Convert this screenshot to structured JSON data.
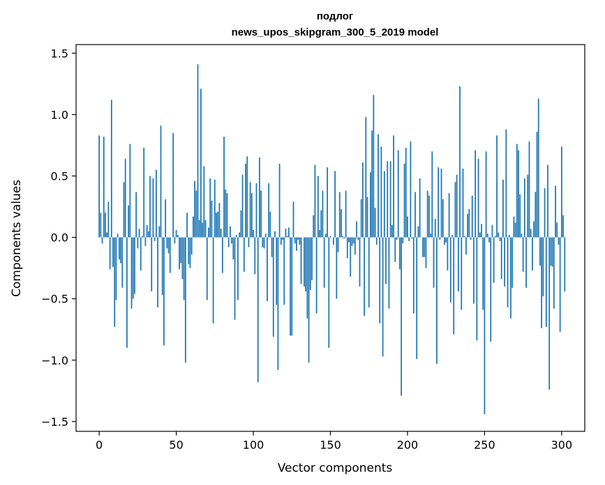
{
  "chart_data": {
    "type": "bar",
    "title": "подлог",
    "subtitle": "news_upos_skipgram_300_5_2019 model",
    "xlabel": "Vector components",
    "ylabel": "Components values",
    "xlim": [
      -15,
      315
    ],
    "ylim": [
      -1.58,
      1.57
    ],
    "xticks": [
      0,
      50,
      100,
      150,
      200,
      250,
      300
    ],
    "yticks": [
      -1.5,
      -1.0,
      -0.5,
      0.0,
      0.5,
      1.0,
      1.5
    ],
    "ytick_labels": [
      "−1.5",
      "−1.0",
      "−0.5",
      "0.0",
      "0.5",
      "1.0",
      "1.5"
    ],
    "bar_color": "#1f77b4",
    "values": [
      0.83,
      0.2,
      -0.05,
      0.82,
      0.2,
      0.04,
      0.29,
      -0.26,
      1.12,
      -0.24,
      -0.73,
      -0.51,
      0.03,
      -0.18,
      -0.21,
      -0.41,
      0.45,
      0.64,
      -0.9,
      0.26,
      0.76,
      -0.58,
      -0.5,
      -0.46,
      0.37,
      -0.09,
      0.07,
      -0.27,
      0.01,
      0.73,
      -0.07,
      0.1,
      0.05,
      0.5,
      -0.44,
      0.48,
      -0.03,
      0.55,
      -0.57,
      0.09,
      0.91,
      -0.47,
      -0.88,
      0.31,
      -0.09,
      -0.13,
      -0.29,
      0.0,
      0.85,
      -0.05,
      0.06,
      0.02,
      -0.26,
      -0.21,
      -0.34,
      -0.51,
      -1.02,
      0.2,
      -0.22,
      -0.25,
      -0.14,
      0.17,
      0.46,
      0.38,
      1.41,
      0.14,
      1.21,
      0.12,
      0.58,
      0.14,
      -0.51,
      0.08,
      0.48,
      0.3,
      -0.7,
      0.47,
      0.2,
      0.21,
      0.28,
      0.07,
      -0.29,
      0.82,
      0.39,
      0.36,
      -0.08,
      0.09,
      -0.05,
      -0.18,
      -0.67,
      0.02,
      -0.51,
      0.04,
      0.22,
      0.51,
      -0.28,
      0.6,
      0.66,
      -0.08,
      0.45,
      0.36,
      0.06,
      -0.3,
      0.44,
      -1.18,
      0.65,
      0.38,
      -0.08,
      -0.09,
      0.03,
      -0.52,
      0.44,
      0.21,
      -0.16,
      -0.81,
      0.05,
      -0.55,
      -1.08,
      0.6,
      -0.06,
      -0.02,
      -0.55,
      0.07,
      0.01,
      0.08,
      -0.8,
      -0.8,
      0.29,
      -0.05,
      -0.11,
      -0.02,
      -0.06,
      -0.38,
      0.0,
      -0.4,
      -0.44,
      -0.66,
      -1.02,
      -0.43,
      -0.35,
      0.18,
      0.59,
      -0.62,
      0.5,
      0.06,
      0.22,
      0.38,
      -0.41,
      0.03,
      0.57,
      -0.9,
      0.01,
      0.0,
      -0.06,
      0.54,
      -0.5,
      -0.12,
      0.37,
      0.23,
      0.01,
      -0.01,
      0.38,
      -0.17,
      -0.04,
      -0.32,
      -0.07,
      -0.05,
      -0.14,
      0.13,
      -0.02,
      -0.4,
      0.31,
      0.61,
      -0.64,
      0.98,
      0.33,
      -0.57,
      0.53,
      0.87,
      1.16,
      0.24,
      -0.06,
      0.84,
      -0.7,
      0.74,
      -0.97,
      0.54,
      -0.38,
      0.62,
      -0.58,
      0.62,
      0.1,
      0.83,
      -0.2,
      -0.02,
      0.71,
      -0.26,
      -1.29,
      -0.05,
      0.6,
      0.73,
      0.17,
      -0.03,
      0.78,
      -0.01,
      -0.62,
      0.37,
      -0.99,
      0.09,
      0.48,
      0.0,
      -0.16,
      -0.16,
      -0.25,
      0.38,
      0.34,
      0.03,
      0.7,
      -0.41,
      0.15,
      -1.03,
      0.57,
      -0.02,
      0.56,
      0.31,
      -0.06,
      -0.04,
      -0.27,
      0.36,
      -0.53,
      0.02,
      -0.79,
      0.45,
      0.51,
      -0.44,
      1.23,
      -0.59,
      0.56,
      0.01,
      -0.14,
      0.19,
      0.23,
      -0.02,
      0.34,
      -0.54,
      0.71,
      -0.84,
      0.64,
      0.04,
      0.11,
      -0.59,
      -1.44,
      0.7,
      0.03,
      -0.04,
      -0.85,
      0.1,
      -0.37,
      0.01,
      0.83,
      0.04,
      -0.03,
      -0.34,
      0.47,
      -0.4,
      0.88,
      -0.57,
      0.02,
      -0.66,
      -0.41,
      0.17,
      0.12,
      0.76,
      0.71,
      0.35,
      0.03,
      -0.28,
      0.48,
      -0.41,
      0.51,
      0.78,
      0.07,
      -0.27,
      0.13,
      0.37,
      0.86,
      1.13,
      -0.23,
      -0.74,
      -0.48,
      0.4,
      -0.73,
      0.59,
      -1.24,
      -0.23,
      -0.24,
      -0.58,
      0.42,
      0.12,
      -0.06,
      -0.77,
      0.74,
      0.18,
      -0.44
    ]
  }
}
